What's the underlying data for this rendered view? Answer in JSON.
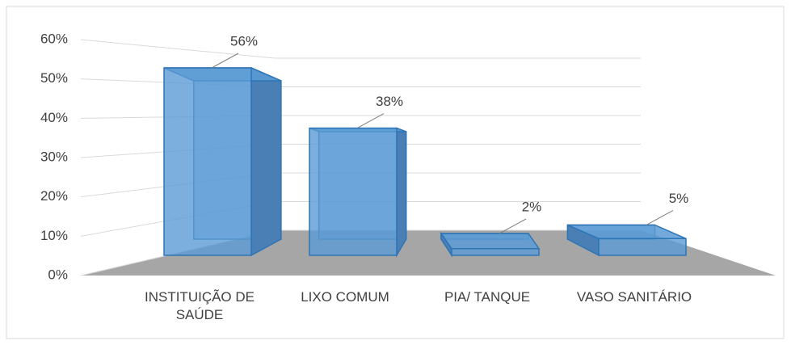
{
  "chart_data": {
    "type": "bar3d",
    "categories": [
      "INSTITUIÇÃO DE SAÚDE",
      "LIXO COMUM",
      "PIA/ TANQUE",
      "VASO SANITÁRIO"
    ],
    "values": [
      56,
      38,
      2,
      5
    ],
    "value_labels": [
      "56%",
      "38%",
      "2%",
      "5%"
    ],
    "color": "#5b9bd5",
    "ylim": [
      0,
      60
    ],
    "yticks": [
      {
        "value": 0,
        "label": "0%"
      },
      {
        "value": 10,
        "label": "10%"
      },
      {
        "value": 20,
        "label": "20%"
      },
      {
        "value": 30,
        "label": "30%"
      },
      {
        "value": 40,
        "label": "40%"
      },
      {
        "value": 50,
        "label": "50%"
      },
      {
        "value": 60,
        "label": "60%"
      }
    ],
    "grid": true
  }
}
